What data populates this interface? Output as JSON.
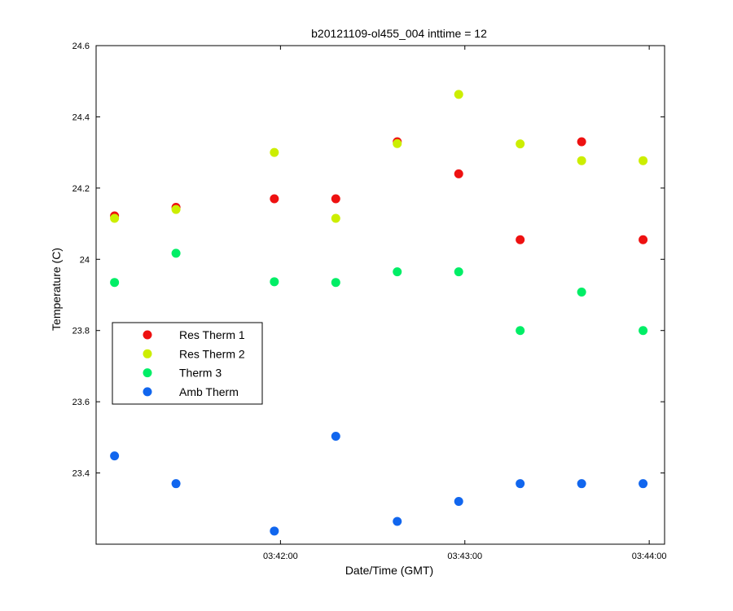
{
  "chart_data": {
    "type": "scatter",
    "title": "b20121109-ol455_004 inttime = 12",
    "xlabel": "Date/Time (GMT)",
    "ylabel": "Temperature (C)",
    "xlim": [
      "03:41:00",
      "03:44:05"
    ],
    "ylim": [
      23.2,
      24.6
    ],
    "x_ticks": [
      "03:42:00",
      "03:43:00",
      "03:44:00"
    ],
    "y_ticks": [
      "23.4",
      "23.6",
      "23.8",
      "24",
      "24.2",
      "24.4",
      "24.6"
    ],
    "grid": false,
    "legend_position": "middle-left",
    "x": [
      "03:41:06",
      "03:41:26",
      "03:41:58",
      "03:42:18",
      "03:42:38",
      "03:42:58",
      "03:43:18",
      "03:43:38",
      "03:43:58"
    ],
    "series": [
      {
        "name": "Res Therm 1",
        "color": "#ee1111",
        "values": [
          24.122,
          24.146,
          24.17,
          24.17,
          24.33,
          24.24,
          24.055,
          24.33,
          24.055
        ]
      },
      {
        "name": "Res Therm 2",
        "color": "#ccee00",
        "values": [
          24.115,
          24.14,
          24.3,
          24.115,
          24.325,
          24.463,
          24.324,
          24.277,
          24.277
        ]
      },
      {
        "name": "Therm 3",
        "color": "#00ee66",
        "values": [
          23.935,
          24.017,
          23.937,
          23.935,
          23.965,
          23.965,
          23.8,
          23.908,
          23.8
        ]
      },
      {
        "name": "Amb Therm",
        "color": "#1166ee",
        "values": [
          23.448,
          23.37,
          23.237,
          23.503,
          23.264,
          23.32,
          23.37,
          23.37,
          23.37
        ]
      }
    ]
  }
}
